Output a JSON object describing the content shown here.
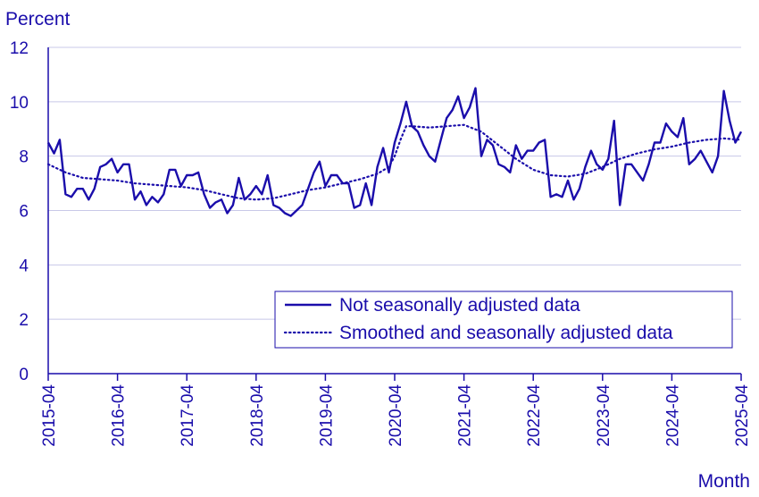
{
  "chart_data": {
    "type": "line",
    "ylabel": "Percent",
    "xlabel": "Month",
    "ylim": [
      0,
      12
    ],
    "yticks": [
      0,
      2,
      4,
      6,
      8,
      10,
      12
    ],
    "xticks": [
      "2015-04",
      "2016-04",
      "2017-04",
      "2018-04",
      "2019-04",
      "2020-04",
      "2021-04",
      "2022-04",
      "2023-04",
      "2024-04",
      "2025-04"
    ],
    "grid": "horizontal",
    "legend_position": "bottom-right",
    "colors": {
      "series": "#1a0dab",
      "grid": "#c8c8e8",
      "axis": "#1a0dab"
    },
    "series": [
      {
        "name": "Not seasonally adjusted data",
        "style": "solid",
        "x": [
          "2015-04",
          "2015-05",
          "2015-06",
          "2015-07",
          "2015-08",
          "2015-09",
          "2015-10",
          "2015-11",
          "2015-12",
          "2016-01",
          "2016-02",
          "2016-03",
          "2016-04",
          "2016-05",
          "2016-06",
          "2016-07",
          "2016-08",
          "2016-09",
          "2016-10",
          "2016-11",
          "2016-12",
          "2017-01",
          "2017-02",
          "2017-03",
          "2017-04",
          "2017-05",
          "2017-06",
          "2017-07",
          "2017-08",
          "2017-09",
          "2017-10",
          "2017-11",
          "2017-12",
          "2018-01",
          "2018-02",
          "2018-03",
          "2018-04",
          "2018-05",
          "2018-06",
          "2018-07",
          "2018-08",
          "2018-09",
          "2018-10",
          "2018-11",
          "2018-12",
          "2019-01",
          "2019-02",
          "2019-03",
          "2019-04",
          "2019-05",
          "2019-06",
          "2019-07",
          "2019-08",
          "2019-09",
          "2019-10",
          "2019-11",
          "2019-12",
          "2020-01",
          "2020-02",
          "2020-03",
          "2020-04",
          "2020-05",
          "2020-06",
          "2020-07",
          "2020-08",
          "2020-09",
          "2020-10",
          "2020-11",
          "2020-12",
          "2021-01",
          "2021-02",
          "2021-03",
          "2021-04",
          "2021-05",
          "2021-06",
          "2021-07",
          "2021-08",
          "2021-09",
          "2021-10",
          "2021-11",
          "2021-12",
          "2022-01",
          "2022-02",
          "2022-03",
          "2022-04",
          "2022-05",
          "2022-06",
          "2022-07",
          "2022-08",
          "2022-09",
          "2022-10",
          "2022-11",
          "2022-12",
          "2023-01",
          "2023-02",
          "2023-03",
          "2023-04",
          "2023-05",
          "2023-06",
          "2023-07",
          "2023-08",
          "2023-09",
          "2023-10",
          "2023-11",
          "2023-12",
          "2024-01",
          "2024-02",
          "2024-03",
          "2024-04",
          "2024-05",
          "2024-06",
          "2024-07",
          "2024-08",
          "2024-09",
          "2024-10",
          "2024-11",
          "2024-12",
          "2025-01",
          "2025-02",
          "2025-03",
          "2025-04"
        ],
        "values": [
          8.5,
          8.1,
          8.6,
          6.6,
          6.5,
          6.8,
          6.8,
          6.4,
          6.8,
          7.6,
          7.7,
          7.9,
          7.4,
          7.7,
          7.7,
          6.4,
          6.7,
          6.2,
          6.5,
          6.3,
          6.6,
          7.5,
          7.5,
          6.9,
          7.3,
          7.3,
          7.4,
          6.6,
          6.1,
          6.3,
          6.4,
          5.9,
          6.2,
          7.2,
          6.4,
          6.6,
          6.9,
          6.6,
          7.3,
          6.2,
          6.1,
          5.9,
          5.8,
          6.0,
          6.2,
          6.8,
          7.4,
          7.8,
          6.9,
          7.3,
          7.3,
          7.0,
          7.0,
          6.1,
          6.2,
          7.0,
          6.2,
          7.6,
          8.3,
          7.4,
          8.5,
          9.2,
          10.0,
          9.1,
          8.9,
          8.4,
          8.0,
          7.8,
          8.6,
          9.4,
          9.7,
          10.2,
          9.4,
          9.8,
          10.5,
          8.0,
          8.6,
          8.4,
          7.7,
          7.6,
          7.4,
          8.4,
          7.9,
          8.2,
          8.2,
          8.5,
          8.6,
          6.5,
          6.6,
          6.5,
          7.1,
          6.4,
          6.8,
          7.6,
          8.2,
          7.7,
          7.5,
          7.9,
          9.3,
          6.2,
          7.7,
          7.7,
          7.4,
          7.1,
          7.7,
          8.5,
          8.5,
          9.2,
          8.9,
          8.7,
          9.4,
          7.7,
          7.9,
          8.2,
          7.8,
          7.4,
          8.0,
          10.4,
          9.3,
          8.5,
          8.9
        ]
      },
      {
        "name": "Smoothed and seasonally adjusted data",
        "style": "dotted",
        "x": [
          "2015-04",
          "2015-07",
          "2015-10",
          "2016-01",
          "2016-04",
          "2016-07",
          "2016-10",
          "2017-01",
          "2017-04",
          "2017-07",
          "2017-10",
          "2018-01",
          "2018-04",
          "2018-07",
          "2018-10",
          "2019-01",
          "2019-04",
          "2019-07",
          "2019-10",
          "2020-01",
          "2020-03",
          "2020-04",
          "2020-05",
          "2020-06",
          "2020-07",
          "2020-10",
          "2021-01",
          "2021-04",
          "2021-07",
          "2021-10",
          "2022-01",
          "2022-04",
          "2022-07",
          "2022-10",
          "2023-01",
          "2023-04",
          "2023-07",
          "2023-10",
          "2024-01",
          "2024-04",
          "2024-07",
          "2024-10",
          "2025-01",
          "2025-04"
        ],
        "values": [
          7.7,
          7.4,
          7.2,
          7.15,
          7.1,
          7.0,
          6.95,
          6.9,
          6.85,
          6.75,
          6.6,
          6.45,
          6.4,
          6.45,
          6.6,
          6.75,
          6.85,
          7.0,
          7.15,
          7.35,
          7.6,
          8.0,
          8.6,
          9.1,
          9.1,
          9.05,
          9.1,
          9.15,
          8.9,
          8.4,
          7.9,
          7.5,
          7.3,
          7.25,
          7.35,
          7.6,
          7.9,
          8.1,
          8.25,
          8.35,
          8.5,
          8.6,
          8.65,
          8.6
        ]
      }
    ]
  }
}
